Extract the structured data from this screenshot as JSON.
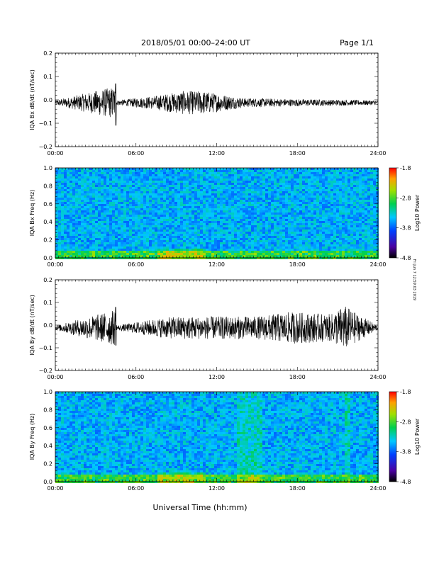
{
  "header": {
    "title": "2018/05/01  00:00–24:00 UT",
    "page": "Page 1/1"
  },
  "footer": {
    "xlabel": "Universal Time (hh:mm)",
    "side_note": "Fri Jun 7 12:59:03 2019"
  },
  "chart_data": [
    {
      "type": "line",
      "ylabel": "IQA Bx dB/dt (nT/sec)",
      "xlim": [
        "00:00",
        "24:00"
      ],
      "ylim": [
        -0.2,
        0.2
      ],
      "x_ticks": [
        "00:00",
        "06:00",
        "12:00",
        "18:00",
        "24:00"
      ],
      "y_ticks": [
        "0.2",
        "0.1",
        "0.0",
        "−0.1",
        "−0.2"
      ],
      "grid": false,
      "series": [
        {
          "x_hours": [
            0,
            4.45,
            4.5,
            4.55,
            7.5,
            8.5,
            9.5,
            11.0,
            12.0,
            13.0,
            14.0,
            18.0,
            24.0
          ],
          "y": [
            -0.01,
            0.07,
            -0.11,
            -0.01,
            0.03,
            0.04,
            0.05,
            0.05,
            0.04,
            0.03,
            0.02,
            0.015,
            0.01
          ]
        }
      ]
    },
    {
      "type": "heatmap",
      "ylabel": "IQA Bx Freq (Hz)",
      "xlim": [
        "00:00",
        "24:00"
      ],
      "ylim": [
        0.0,
        1.0
      ],
      "x_ticks": [
        "00:00",
        "06:00",
        "12:00",
        "18:00",
        "24:00"
      ],
      "y_ticks": [
        "1.0",
        "0.8",
        "0.6",
        "0.4",
        "0.2",
        "0.0"
      ],
      "colorbar": {
        "label": "Log10 Power",
        "range": [
          -4.8,
          -1.8
        ],
        "ticks": [
          "-1.8",
          "-2.8",
          "-3.8",
          "-4.8"
        ]
      }
    },
    {
      "type": "line",
      "ylabel": "IQA By dB/dt (nT/sec)",
      "xlim": [
        "00:00",
        "24:00"
      ],
      "ylim": [
        -0.2,
        0.2
      ],
      "x_ticks": [
        "00:00",
        "06:00",
        "12:00",
        "18:00",
        "24:00"
      ],
      "y_ticks": [
        "0.2",
        "0.1",
        "0.0",
        "−0.1",
        "−0.2"
      ],
      "grid": false,
      "series": [
        {
          "x_hours": [
            0,
            4.45,
            4.5,
            4.55,
            7.5,
            9.0,
            12.0,
            15.0,
            17.5,
            17.7,
            20.5,
            21.5,
            22.5,
            24.0
          ],
          "y": [
            -0.01,
            0.08,
            -0.09,
            -0.01,
            0.04,
            0.05,
            0.05,
            0.05,
            0.07,
            -0.07,
            0.06,
            0.1,
            0.06,
            0.01
          ]
        }
      ]
    },
    {
      "type": "heatmap",
      "ylabel": "IQA By Freq (Hz)",
      "xlim": [
        "00:00",
        "24:00"
      ],
      "ylim": [
        0.0,
        1.0
      ],
      "x_ticks": [
        "00:00",
        "06:00",
        "12:00",
        "18:00",
        "24:00"
      ],
      "y_ticks": [
        "1.0",
        "0.8",
        "0.6",
        "0.4",
        "0.2",
        "0.0"
      ],
      "colorbar": {
        "label": "Log10 Power",
        "range": [
          -4.8,
          -1.8
        ],
        "ticks": [
          "-1.8",
          "-2.8",
          "-3.8",
          "-4.8"
        ]
      }
    }
  ]
}
